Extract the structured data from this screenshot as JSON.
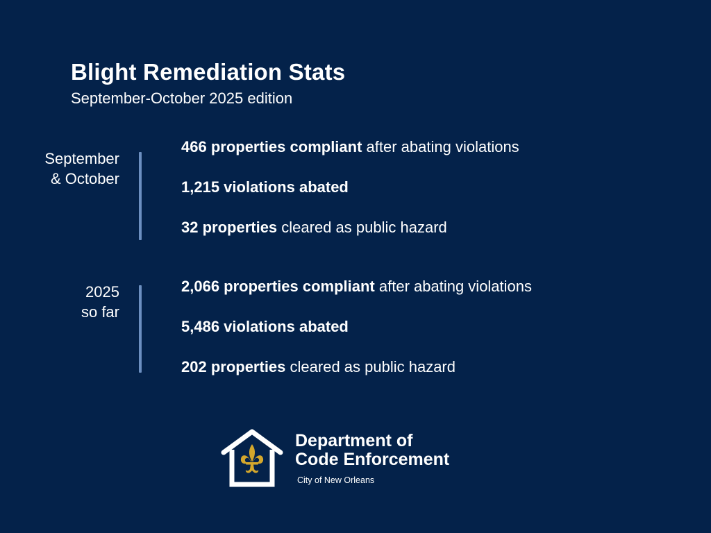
{
  "header": {
    "title": "Blight Remediation Stats",
    "subtitle": "September-October 2025 edition"
  },
  "sections": [
    {
      "label_lines": [
        "September",
        "& October"
      ],
      "stats": [
        {
          "bold": "466 properties compliant",
          "rest": " after abating violations"
        },
        {
          "bold": "1,215 violations abated",
          "rest": ""
        },
        {
          "bold": "32 properties",
          "rest": " cleared as public hazard"
        }
      ]
    },
    {
      "label_lines": [
        "2025",
        "so far"
      ],
      "stats": [
        {
          "bold": "2,066 properties compliant",
          "rest": " after abating violations"
        },
        {
          "bold": "5,486 violations abated",
          "rest": ""
        },
        {
          "bold": "202 properties",
          "rest": " cleared as public hazard"
        }
      ]
    }
  ],
  "logo": {
    "name_lines": [
      "Department of",
      "Code Enforcement"
    ],
    "city": "City of New Orleans",
    "icon": "house-fleur-de-lis-icon",
    "colors": {
      "background": "#04224a",
      "divider": "#6c8fc0",
      "fleur": "#d4a72c"
    }
  }
}
